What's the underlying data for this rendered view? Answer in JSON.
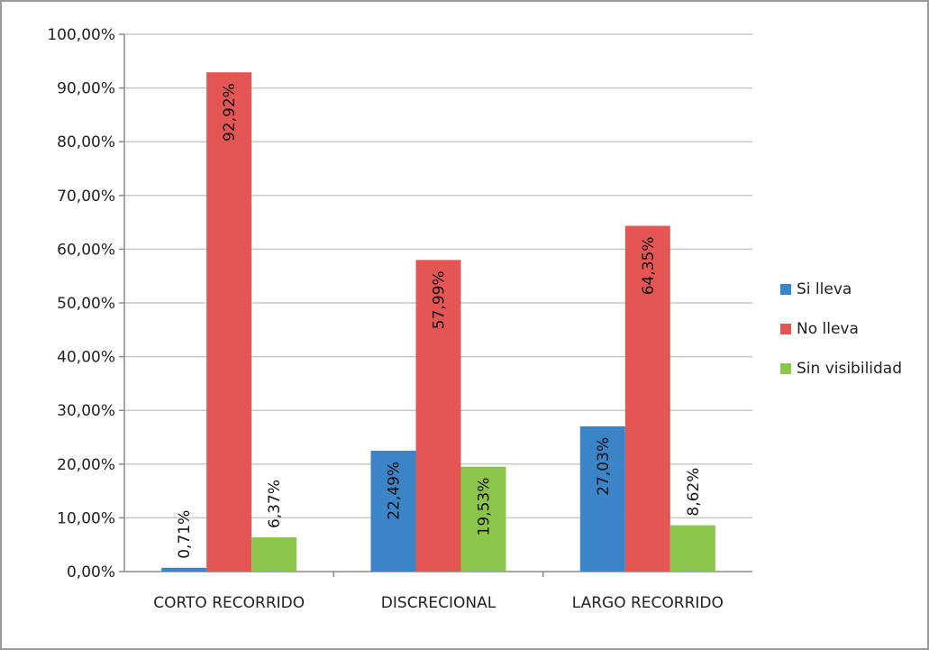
{
  "chart_data": {
    "type": "bar",
    "categories": [
      "CORTO RECORRIDO",
      "DISCRECIONAL",
      "LARGO RECORRIDO"
    ],
    "series": [
      {
        "name": "Si lleva",
        "values": [
          0.71,
          22.49,
          27.03
        ],
        "labels": [
          "0,71%",
          "22,49%",
          "27,03%"
        ],
        "color": "#3a84c7"
      },
      {
        "name": "No lleva",
        "values": [
          92.92,
          57.99,
          64.35
        ],
        "labels": [
          "92,92%",
          "57,99%",
          "64,35%"
        ],
        "color": "#e35654"
      },
      {
        "name": "Sin visibilidad",
        "values": [
          6.37,
          19.53,
          8.62
        ],
        "labels": [
          "6,37%",
          "19,53%",
          "8,62%"
        ],
        "color": "#8cc54b"
      }
    ],
    "ylim": [
      0,
      100
    ],
    "yticks": [
      0,
      10,
      20,
      30,
      40,
      50,
      60,
      70,
      80,
      90,
      100
    ],
    "ytick_labels": [
      "0,00%",
      "10,00%",
      "20,00%",
      "30,00%",
      "40,00%",
      "50,00%",
      "60,00%",
      "70,00%",
      "80,00%",
      "90,00%",
      "100,00%"
    ],
    "grid": true,
    "legend": "right",
    "title": "",
    "xlabel": "",
    "ylabel": ""
  }
}
